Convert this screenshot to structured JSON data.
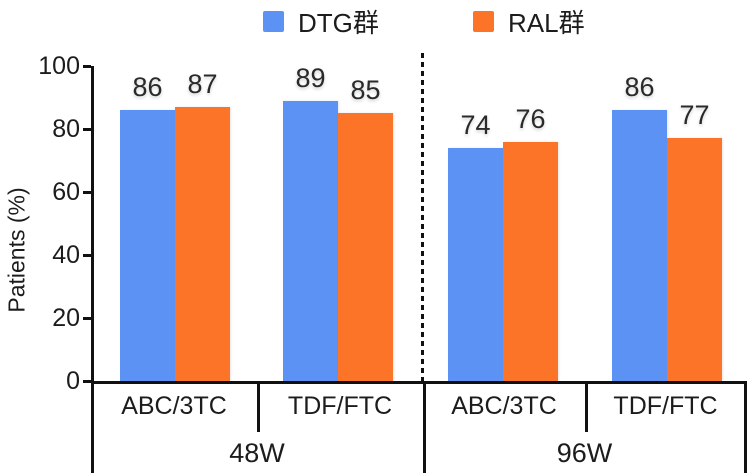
{
  "colors": {
    "dtg_blue": "#5D92F5",
    "ral_orange": "#FB7428",
    "axis": "#111111",
    "text": "#1c1c1c"
  },
  "legend": {
    "items": [
      {
        "label": "DTG群",
        "color": "#5D92F5"
      },
      {
        "label": "RAL群",
        "color": "#FB7428"
      }
    ]
  },
  "chart_data": {
    "type": "bar",
    "title": "",
    "ylabel": "Patients (%)",
    "xlabel": "",
    "ylim": [
      0,
      100
    ],
    "yticks": [
      0,
      20,
      40,
      60,
      80,
      100
    ],
    "legend_position": "top",
    "grid": false,
    "categories": [
      "ABC/3TC",
      "TDF/FTC",
      "ABC/3TC",
      "TDF/FTC"
    ],
    "group_labels": [
      "48W",
      "96W"
    ],
    "groups": [
      {
        "label": "48W",
        "categories": [
          {
            "label": "ABC/3TC",
            "values": {
              "DTG群": 86,
              "RAL群": 87
            }
          },
          {
            "label": "TDF/FTC",
            "values": {
              "DTG群": 89,
              "RAL群": 85
            }
          }
        ]
      },
      {
        "label": "96W",
        "categories": [
          {
            "label": "ABC/3TC",
            "values": {
              "DTG群": 74,
              "RAL群": 76
            }
          },
          {
            "label": "TDF/FTC",
            "values": {
              "DTG群": 86,
              "RAL群": 77
            }
          }
        ]
      }
    ],
    "series": [
      {
        "name": "DTG群",
        "color": "#5D92F5",
        "values": [
          86,
          89,
          74,
          86
        ]
      },
      {
        "name": "RAL群",
        "color": "#FB7428",
        "values": [
          87,
          85,
          76,
          77
        ]
      }
    ],
    "annotations": {
      "separator": "dashed vertical line between 48W and 96W"
    }
  }
}
